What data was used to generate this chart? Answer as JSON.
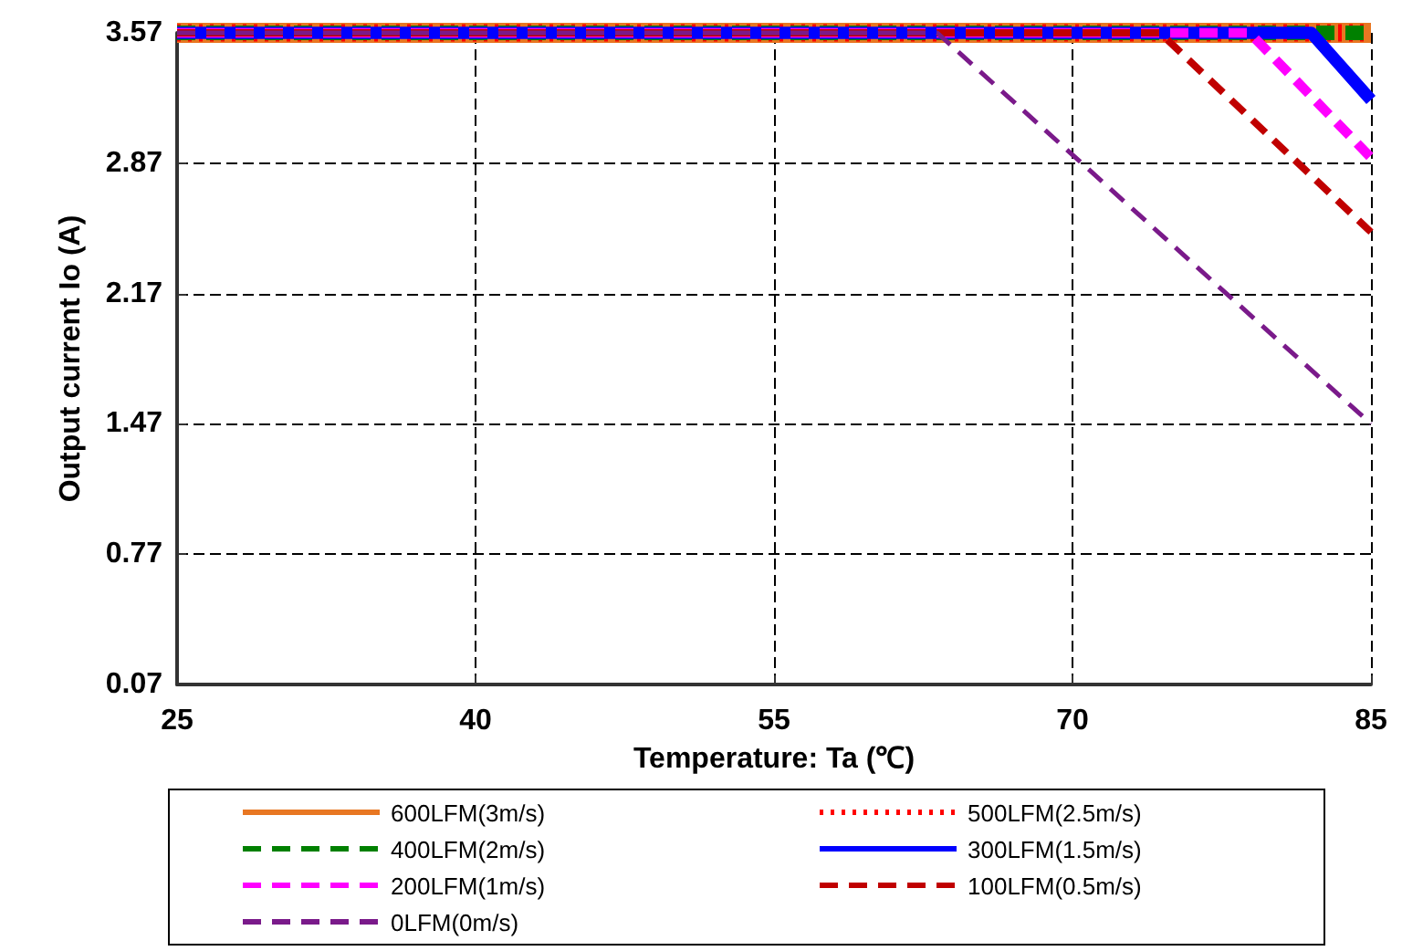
{
  "chart_data": {
    "type": "line",
    "xlabel": "Temperature: Ta (℃)",
    "ylabel": "Output current Io (A)",
    "xlim": [
      25,
      85
    ],
    "xticks": [
      25,
      40,
      55,
      70,
      85
    ],
    "ylim": [
      0.07,
      3.57
    ],
    "yticks": [
      0.07,
      0.77,
      1.47,
      2.17,
      2.87,
      3.57
    ],
    "grid": true,
    "legend": "bottom",
    "marker": "none",
    "series": [
      {
        "name": "600LFM(3m/s)",
        "color": "#e87722",
        "line_style": "solid",
        "x": [
          25,
          85
        ],
        "values": [
          3.57,
          3.57
        ]
      },
      {
        "name": "500LFM(2.5m/s)",
        "color": "#ff0000",
        "line_style": "dotted",
        "x": [
          25,
          85
        ],
        "values": [
          3.57,
          3.57
        ]
      },
      {
        "name": "400LFM(2m/s)",
        "color": "#008000",
        "line_style": "dashed",
        "x": [
          25,
          85
        ],
        "values": [
          3.57,
          3.57
        ]
      },
      {
        "name": "300LFM(1.5m/s)",
        "color": "#0000ff",
        "line_style": "solid",
        "x": [
          25,
          82,
          85
        ],
        "values": [
          3.57,
          3.57,
          3.21
        ]
      },
      {
        "name": "200LFM(1m/s)",
        "color": "#ff00ff",
        "line_style": "dashed",
        "x": [
          25,
          78.9,
          85
        ],
        "values": [
          3.57,
          3.57,
          2.9
        ]
      },
      {
        "name": "100LFM(0.5m/s)",
        "color": "#c00000",
        "line_style": "dashed",
        "x": [
          25,
          74.4,
          85
        ],
        "values": [
          3.57,
          3.57,
          2.5
        ]
      },
      {
        "name": "0LFM(0m/s)",
        "color": "#7a1a8a",
        "line_style": "dashed",
        "x": [
          25,
          63.2,
          85
        ],
        "values": [
          3.57,
          3.57,
          1.47
        ]
      }
    ]
  }
}
